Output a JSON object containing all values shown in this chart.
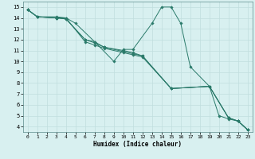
{
  "background_color": "#d8f0f0",
  "grid_color": "#c0dede",
  "line_color": "#2a7a6a",
  "marker_color": "#2a7a6a",
  "xlabel": "Humidex (Indice chaleur)",
  "xlim": [
    -0.5,
    23.5
  ],
  "ylim": [
    3.5,
    15.5
  ],
  "xticks": [
    0,
    1,
    2,
    3,
    4,
    5,
    6,
    7,
    8,
    9,
    10,
    11,
    12,
    13,
    14,
    15,
    16,
    17,
    18,
    19,
    20,
    21,
    22,
    23
  ],
  "yticks": [
    4,
    5,
    6,
    7,
    8,
    9,
    10,
    11,
    12,
    13,
    14,
    15
  ],
  "lines": [
    {
      "x": [
        0,
        1,
        3,
        4,
        5,
        7,
        9,
        10,
        11,
        13,
        14,
        15,
        16,
        17,
        19,
        20,
        21,
        22,
        23
      ],
      "y": [
        14.75,
        14.1,
        14.1,
        14.0,
        13.5,
        11.8,
        10.0,
        11.1,
        11.1,
        13.5,
        15.0,
        15.0,
        13.5,
        9.5,
        7.7,
        5.0,
        4.7,
        4.5,
        3.7
      ]
    },
    {
      "x": [
        0,
        1,
        3,
        4,
        6,
        7,
        8,
        10,
        11,
        12,
        15,
        19,
        21,
        22,
        23
      ],
      "y": [
        14.75,
        14.1,
        14.0,
        13.9,
        12.0,
        11.8,
        11.3,
        11.0,
        10.8,
        10.5,
        7.5,
        7.7,
        4.8,
        4.5,
        3.7
      ]
    },
    {
      "x": [
        0,
        1,
        3,
        4,
        6,
        7,
        8,
        10,
        11,
        12,
        15,
        19,
        21,
        22,
        23
      ],
      "y": [
        14.75,
        14.1,
        14.0,
        13.9,
        12.0,
        11.7,
        11.3,
        10.9,
        10.7,
        10.5,
        7.5,
        7.7,
        4.8,
        4.5,
        3.7
      ]
    },
    {
      "x": [
        0,
        1,
        3,
        4,
        6,
        7,
        8,
        10,
        11,
        12,
        15,
        19,
        21,
        22,
        23
      ],
      "y": [
        14.75,
        14.1,
        14.0,
        14.0,
        11.8,
        11.5,
        11.2,
        10.8,
        10.6,
        10.4,
        7.5,
        7.7,
        4.8,
        4.5,
        3.7
      ]
    }
  ]
}
